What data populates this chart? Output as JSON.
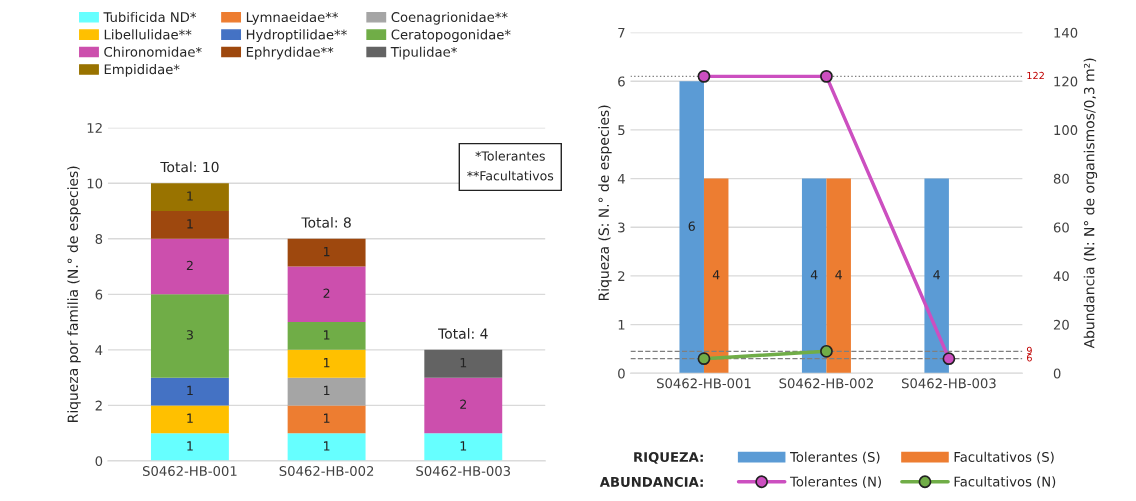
{
  "chart_data": [
    {
      "type": "bar",
      "stacked": true,
      "ylabel": "Riqueza por familia (N.° de especies)",
      "categories": [
        "S0462-HB-001",
        "S0462-HB-002",
        "S0462-HB-003"
      ],
      "series": [
        {
          "name": "Tubificida ND*",
          "color": "#66ffff",
          "values": [
            1,
            1,
            1
          ]
        },
        {
          "name": "Lymnaeidae**",
          "color": "#ed7d31",
          "values": [
            null,
            1,
            null
          ]
        },
        {
          "name": "Coenagrionidae**",
          "color": "#a5a5a5",
          "values": [
            null,
            1,
            null
          ]
        },
        {
          "name": "Libellulidae**",
          "color": "#ffc000",
          "values": [
            1,
            1,
            null
          ]
        },
        {
          "name": "Hydroptilidae**",
          "color": "#4472c4",
          "values": [
            1,
            null,
            null
          ]
        },
        {
          "name": "Ceratopogonidae*",
          "color": "#70ad47",
          "values": [
            3,
            1,
            null
          ]
        },
        {
          "name": "Chironomidae*",
          "color": "#cc4fad",
          "values": [
            2,
            2,
            2
          ]
        },
        {
          "name": "Ephrydidae**",
          "color": "#9e480e",
          "values": [
            1,
            1,
            null
          ]
        },
        {
          "name": "Tipulidae*",
          "color": "#636363",
          "values": [
            null,
            null,
            1
          ]
        },
        {
          "name": "Empididae*",
          "color": "#997300",
          "values": [
            1,
            null,
            null
          ]
        }
      ],
      "ylim": [
        0,
        12
      ],
      "yticks": [
        0,
        2,
        4,
        6,
        8,
        10,
        12
      ],
      "grid": "y",
      "legend": "top",
      "data_labels": true,
      "totals": [
        "Total: 10",
        "Total: 8",
        "Total: 4"
      ],
      "annotations": [
        "*Tolerantes\n**Facultativos"
      ]
    },
    {
      "type": "bar",
      "ylabel": "Riqueza (S: N.° de especies)",
      "y2label": "Abundancia (N: N° de organismos/0,3 m²)",
      "categories": [
        "S0462-HB-001",
        "S0462-HB-002",
        "S0462-HB-003"
      ],
      "series": [
        {
          "name": "Tolerantes (S)",
          "color": "#5b9bd5",
          "values": [
            6,
            4,
            4
          ],
          "value_labels": [
            "6",
            "4",
            "4"
          ]
        },
        {
          "name": "Facultativos (S)",
          "color": "#ed7d31",
          "values": [
            4,
            4,
            null
          ],
          "value_labels": [
            "4",
            "4",
            null
          ]
        },
        {
          "name": "Tolerantes (N)",
          "type": "line",
          "axis": "y2",
          "marker": "circle",
          "color": "#cc4fc0",
          "values": [
            122,
            122,
            6
          ]
        },
        {
          "name": "Facultativos (N)",
          "type": "line",
          "axis": "y2",
          "marker": "circle",
          "color": "#70ad47",
          "values": [
            6,
            9,
            null
          ]
        }
      ],
      "ylim": [
        0,
        7
      ],
      "yticks": [
        0,
        1,
        2,
        3,
        4,
        5,
        6,
        7
      ],
      "y2lim": [
        0,
        140
      ],
      "y2ticks": [
        0,
        20,
        40,
        60,
        80,
        100,
        120,
        140
      ],
      "grid": "y",
      "legend": "bottom",
      "ref_lines": [
        {
          "axis": "y2",
          "value": 122,
          "label": "122",
          "color": "#7f7f7f",
          "line_style": "dotted"
        },
        {
          "axis": "y2",
          "value": 9,
          "label": "9",
          "color": "#7f7f7f",
          "line_style": "dashed"
        },
        {
          "axis": "y2",
          "value": 6,
          "label": "6",
          "color": "#7f7f7f",
          "line_style": "dashed"
        }
      ],
      "annotations": [
        "RIQUEZA:",
        "ABUNDANCIA:"
      ]
    }
  ]
}
